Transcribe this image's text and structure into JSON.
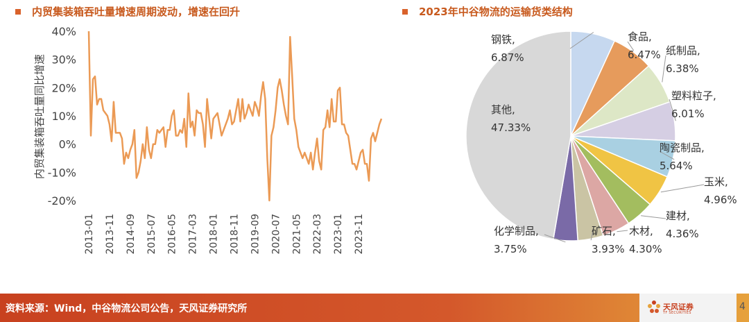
{
  "left_panel": {
    "title": "内贸集装箱吞吐量增速周期波动，增速在回升"
  },
  "right_panel": {
    "title": "2023年中谷物流的运输货类结构"
  },
  "footer": {
    "source": "资料来源：Wind，中谷物流公司公告，天风证券研究所",
    "page_number": "4"
  },
  "logo": {
    "name": "天风证券",
    "sub": "TF SECURITIES"
  },
  "colors": {
    "accent": "#d9622b",
    "line": "#eb9a55",
    "footer_start": "#c8411f",
    "footer_end": "#e6a23c"
  },
  "chart_data": [
    {
      "type": "line",
      "title": "内贸集装箱吞吐量增速周期波动，增速在回升",
      "ylabel": "内贸集装箱吞吐量同比增速",
      "xlabel": "",
      "ylim": [
        -20,
        40
      ],
      "yticks": [
        "40%",
        "30%",
        "20%",
        "10%",
        "0%",
        "-10%",
        "-20%"
      ],
      "xticks": [
        "2013-01",
        "2013-11",
        "2014-09",
        "2015-07",
        "2016-05",
        "2017-03",
        "2018-01",
        "2018-11",
        "2019-09",
        "2020-07",
        "2021-05",
        "2022-03",
        "2023-01",
        "2023-11"
      ],
      "grid": false,
      "series": [
        {
          "values": [
            40,
            3,
            23,
            24,
            14,
            16,
            16,
            12,
            11,
            10,
            7,
            1,
            15,
            4,
            4,
            4,
            2,
            -7,
            -3,
            -5,
            -2,
            0,
            5,
            -12,
            -10,
            -6,
            0,
            -5,
            6,
            -2,
            -5,
            0,
            0,
            5,
            4,
            5,
            6,
            -1,
            5,
            5,
            10,
            12,
            3,
            3,
            5,
            4,
            9,
            -1,
            18,
            6,
            8,
            3,
            12,
            11,
            11,
            7,
            -1,
            16,
            9,
            2,
            9,
            10,
            11,
            7,
            3,
            5,
            7,
            9,
            12,
            7,
            8,
            12,
            16,
            8,
            16,
            9,
            11,
            14,
            12,
            10,
            15,
            13,
            10,
            17,
            22,
            16,
            -5,
            -20,
            3,
            6,
            12,
            20,
            23,
            19,
            14,
            10,
            7,
            38,
            24,
            9,
            5,
            -1,
            -3,
            -5,
            -3,
            -5,
            -7,
            -3,
            -9,
            -3,
            2,
            -6,
            -9,
            5,
            6,
            12,
            6,
            16,
            8,
            8,
            19,
            20,
            7,
            7,
            4,
            3,
            -2,
            -7,
            -7,
            -9,
            -6,
            -3,
            -2,
            -7,
            -7,
            -13,
            2,
            4,
            1,
            4,
            7,
            9
          ],
          "color": "#eb9a55"
        }
      ]
    },
    {
      "type": "pie",
      "title": "2023年中谷物流的运输货类结构",
      "labels": [
        "钢铁",
        "食品",
        "纸制品",
        "塑料粒子",
        "陶瓷制品",
        "玉米",
        "建材",
        "木材",
        "矿石",
        "化学制品",
        "其他"
      ],
      "values": [
        6.87,
        6.47,
        6.38,
        6.01,
        5.64,
        4.96,
        4.36,
        4.3,
        3.93,
        3.75,
        47.33
      ],
      "value_labels": [
        "6.87%",
        "6.47%",
        "6.38%",
        "6.01%",
        "5.64%",
        "4.96%",
        "4.36%",
        "4.30%",
        "3.93%",
        "3.75%",
        "47.33%"
      ],
      "colors": [
        "#c6d8ef",
        "#e69b5c",
        "#dde7c6",
        "#d5cee3",
        "#a9d0e2",
        "#f0c444",
        "#a3bd5f",
        "#dca7a4",
        "#cac4a4",
        "#7a6aa7",
        "#d8d8d8"
      ]
    }
  ]
}
